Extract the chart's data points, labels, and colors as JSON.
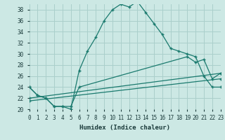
{
  "xlabel": "Humidex (Indice chaleur)",
  "background_color": "#cce8e4",
  "grid_color": "#aacfcb",
  "line_color": "#1a7a6e",
  "x_min": 0,
  "x_max": 23,
  "y_min": 20,
  "y_max": 39,
  "line1_x": [
    0,
    1,
    2,
    3,
    4,
    5,
    6,
    7,
    8,
    9,
    10,
    11,
    12,
    13,
    14,
    15,
    16,
    17,
    18,
    19,
    20,
    21,
    22,
    23
  ],
  "line1_y": [
    24,
    22.5,
    22,
    20.5,
    20.5,
    20,
    27,
    30.5,
    33,
    36,
    38,
    39,
    38.5,
    39.5,
    37.5,
    35.5,
    33.5,
    31,
    30.5,
    30,
    29.5,
    26,
    24,
    24
  ],
  "line2_x": [
    0,
    1,
    2,
    3,
    4,
    5,
    6,
    19,
    20,
    21,
    22,
    23
  ],
  "line2_y": [
    24,
    22.5,
    22,
    20.5,
    20.5,
    20.5,
    24,
    29.5,
    28.5,
    29,
    25.5,
    26.5
  ],
  "line3_x": [
    0,
    23
  ],
  "line3_y": [
    22,
    26.5
  ],
  "line4_x": [
    0,
    23
  ],
  "line4_y": [
    21.5,
    25.5
  ]
}
